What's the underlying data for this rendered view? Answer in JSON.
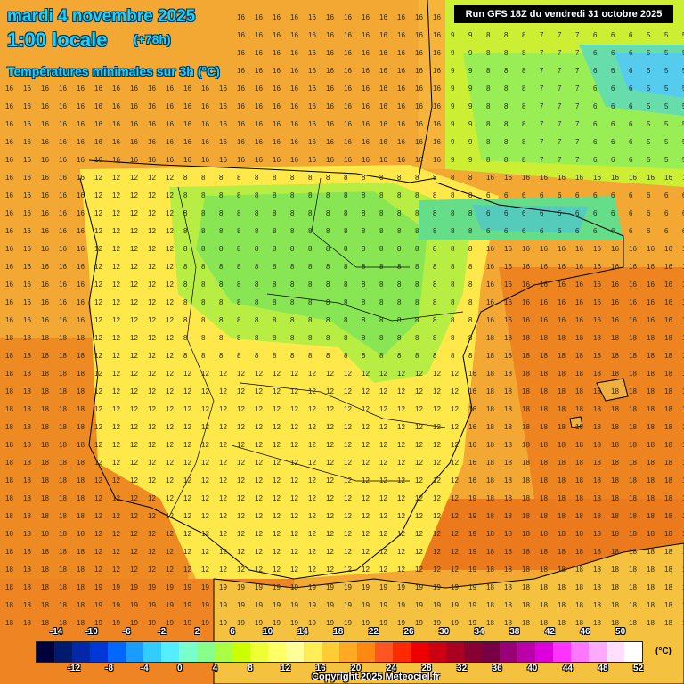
{
  "header": {
    "date_line": "mardi 4 novembre 2025",
    "time_line": "1:00 locale",
    "offset": "(+78h)",
    "subtitle": "Températures minimales sur 3h (°C)",
    "run": "Run GFS 18Z du vendredi 31 octobre 2025"
  },
  "legend": {
    "upper_ticks": [
      "-14",
      "-10",
      "-6",
      "-2",
      "2",
      "6",
      "10",
      "14",
      "18",
      "22",
      "26",
      "30",
      "34",
      "38",
      "42",
      "46",
      "50"
    ],
    "lower_ticks": [
      "-12",
      "-8",
      "-4",
      "0",
      "4",
      "8",
      "12",
      "16",
      "20",
      "24",
      "28",
      "32",
      "36",
      "40",
      "44",
      "48",
      "52"
    ],
    "unit": "(°C)",
    "colors": [
      "#00003a",
      "#001a6e",
      "#0028a8",
      "#0038d8",
      "#0068ff",
      "#1a9cff",
      "#33ccff",
      "#55eeff",
      "#77ffcc",
      "#88ff88",
      "#aaff44",
      "#ccff00",
      "#eeff33",
      "#ffff66",
      "#ffff99",
      "#ffee55",
      "#ffcc33",
      "#ffaa22",
      "#ff8811",
      "#ff5522",
      "#ff2a00",
      "#ee0000",
      "#cc0011",
      "#aa0022",
      "#880033",
      "#770044",
      "#990077",
      "#bb00aa",
      "#dd00dd",
      "#ff33ff",
      "#ff77ff",
      "#ffaaff",
      "#ffdfff",
      "#ffffff"
    ]
  },
  "copyright": "Copyright 2025 Meteociel.fr",
  "colors": {
    "header_text": "#19d4ff",
    "border": "#000000"
  }
}
